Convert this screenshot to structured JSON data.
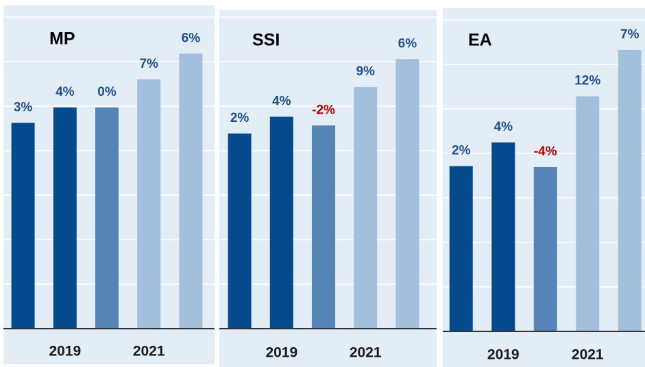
{
  "chart_data": [
    {
      "type": "bar",
      "title": "MP",
      "categories": [
        null,
        "2019",
        null,
        "2021",
        null
      ],
      "values": [
        3,
        4,
        0,
        7,
        6
      ],
      "value_labels": [
        "3%",
        "4%",
        "0%",
        "7%",
        "6%"
      ],
      "colors": [
        "#054a8c",
        "#054a8c",
        "#5585b6",
        "#a2bfdb",
        "#a2bfdb"
      ],
      "label_color": "#1f4f8e",
      "negative_label_color": "#c00000",
      "ylim": [
        0.48,
        1.34
      ],
      "grid": true
    },
    {
      "type": "bar",
      "title": "SSI",
      "categories": [
        null,
        "2019",
        null,
        "2021",
        null
      ],
      "values": [
        2,
        4,
        -2,
        9,
        6
      ],
      "value_labels": [
        "2%",
        "4%",
        "-2%",
        "9%",
        "6%"
      ],
      "colors": [
        "#054a8c",
        "#054a8c",
        "#5585b6",
        "#a2bfdb",
        "#a2bfdb"
      ],
      "label_color": "#1f4f8e",
      "negative_label_color": "#c00000",
      "ylim": [
        0.545,
        1.315
      ],
      "grid": true
    },
    {
      "type": "bar",
      "title": "EA",
      "categories": [
        null,
        "2019",
        null,
        "2021",
        null
      ],
      "values": [
        2,
        4,
        -4,
        12,
        7
      ],
      "value_labels": [
        "2%",
        "4%",
        "-4%",
        "12%",
        "7%"
      ],
      "colors": [
        "#054a8c",
        "#054a8c",
        "#5585b6",
        "#a2bfdb",
        "#a2bfdb"
      ],
      "label_color": "#1f4f8e",
      "negative_label_color": "#c00000",
      "ylim": [
        0.735,
        1.29
      ],
      "grid": true
    }
  ]
}
